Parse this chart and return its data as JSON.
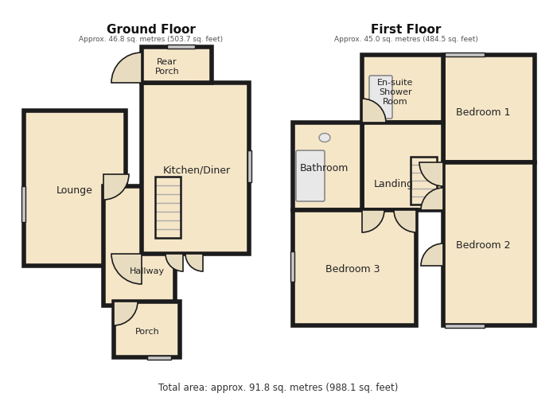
{
  "bg_color": "#ffffff",
  "floor_color": "#f5e6c8",
  "wall_color": "#1c1c1c",
  "wall_lw": 4.0,
  "inner_lw": 1.8,
  "win_color": "#c8c8c8",
  "door_color": "#e8dcc0",
  "stair_color": "#aaaaaa",
  "title_gf": "Ground Floor",
  "subtitle_gf": "Approx. 46.8 sq. metres (503.7 sq. feet)",
  "title_ff": "First Floor",
  "subtitle_ff": "Approx. 45.0 sq. metres (484.5 sq. feet)",
  "footer": "Total area: approx. 91.8 sq. metres (988.1 sq. feet)"
}
